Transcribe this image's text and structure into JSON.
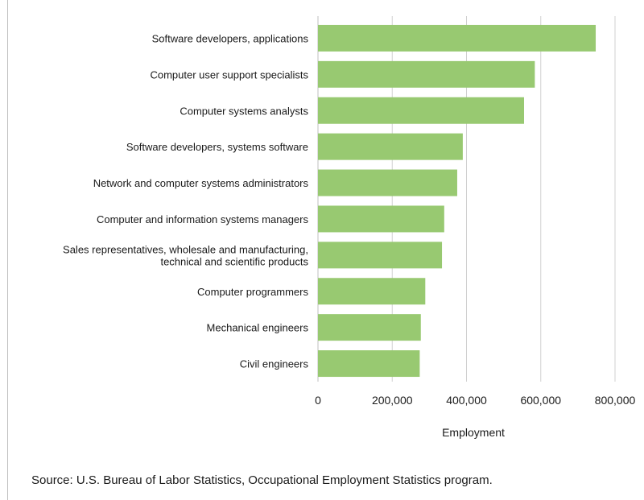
{
  "chart_data": {
    "type": "bar",
    "orientation": "horizontal",
    "categories": [
      [
        "Software developers, applications"
      ],
      [
        "Computer user support specialists"
      ],
      [
        "Computer systems analysts"
      ],
      [
        "Software developers, systems software"
      ],
      [
        "Network and computer systems administrators"
      ],
      [
        "Computer and information systems managers"
      ],
      [
        "Sales representatives, wholesale and manufacturing,",
        "technical and scientific products"
      ],
      [
        "Computer programmers"
      ],
      [
        "Mechanical engineers"
      ],
      [
        "Civil engineers"
      ]
    ],
    "values": [
      748000,
      584000,
      555000,
      390000,
      375000,
      340000,
      334000,
      289000,
      277000,
      274000
    ],
    "xlabel": "Employment",
    "xlim": [
      0,
      800000
    ],
    "xticks": [
      "0",
      "200,000",
      "400,000",
      "600,000",
      "800,000"
    ],
    "grid": true,
    "legend": "none",
    "bar_color": "#98c971",
    "grid_color": "#d0d0d0"
  },
  "source_text": "Source: U.S. Bureau of Labor Statistics, Occupational Employment Statistics program."
}
